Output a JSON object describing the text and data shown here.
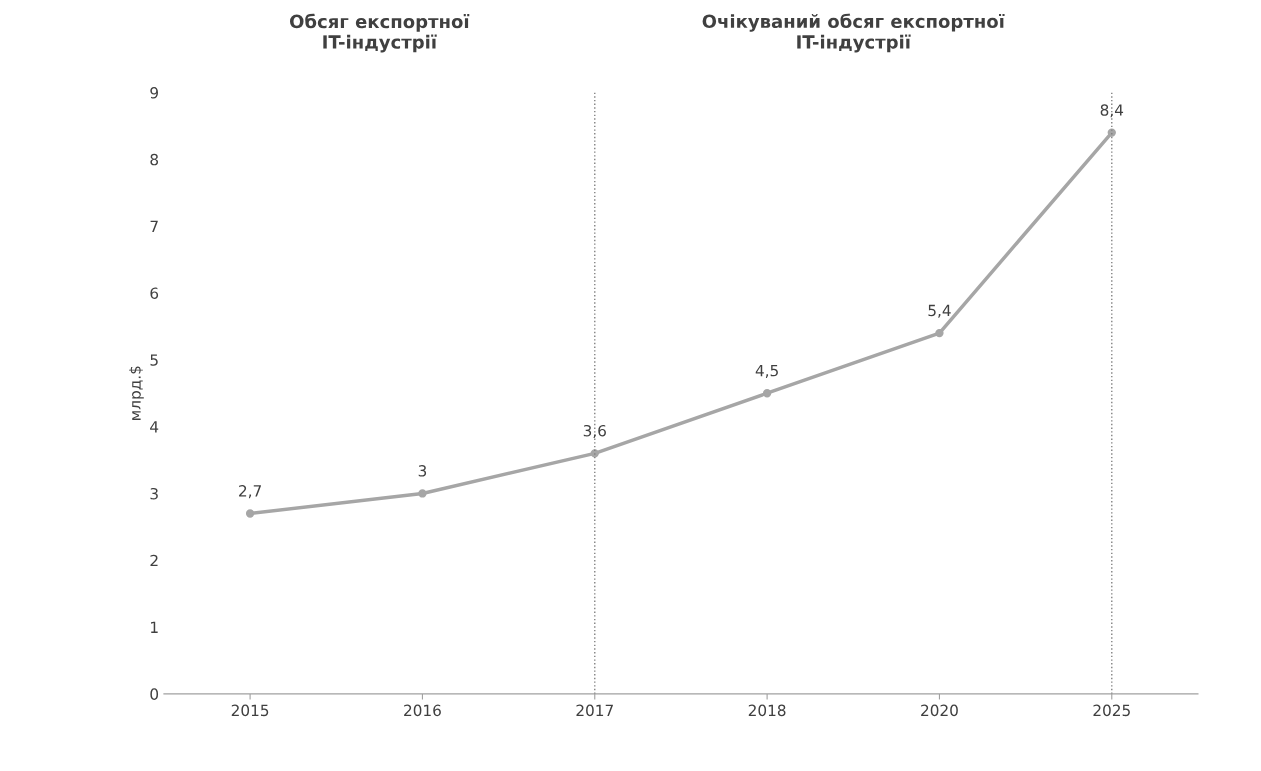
{
  "chart_data": {
    "type": "line",
    "ylabel": "млрд.$",
    "categories": [
      "2015",
      "2016",
      "2017",
      "2018",
      "2020",
      "2025"
    ],
    "series": [
      {
        "color": "#a6a6a6",
        "values": [
          2.7,
          3,
          3.6,
          4.5,
          5.4,
          8.4
        ],
        "value_labels": [
          "2,7",
          "3",
          "3,6",
          "4,5",
          "5,4",
          "8,4"
        ]
      }
    ],
    "ylim": [
      0,
      9
    ],
    "yticks": [
      0,
      1,
      2,
      3,
      4,
      5,
      6,
      7,
      8,
      9
    ],
    "marker": "circle",
    "line_style": "solid",
    "grid": false,
    "legend": false,
    "ref_lines": [
      {
        "axis": "x",
        "value": "2017",
        "color": "#808080",
        "line_style": "dotted"
      },
      {
        "axis": "x",
        "value": "2025",
        "color": "#808080",
        "line_style": "dotted"
      }
    ],
    "annotations": [
      "Обсяг експортної\nIT-індустрії",
      "Очікуваний обсяг експортної\nIT-індустрії"
    ]
  }
}
